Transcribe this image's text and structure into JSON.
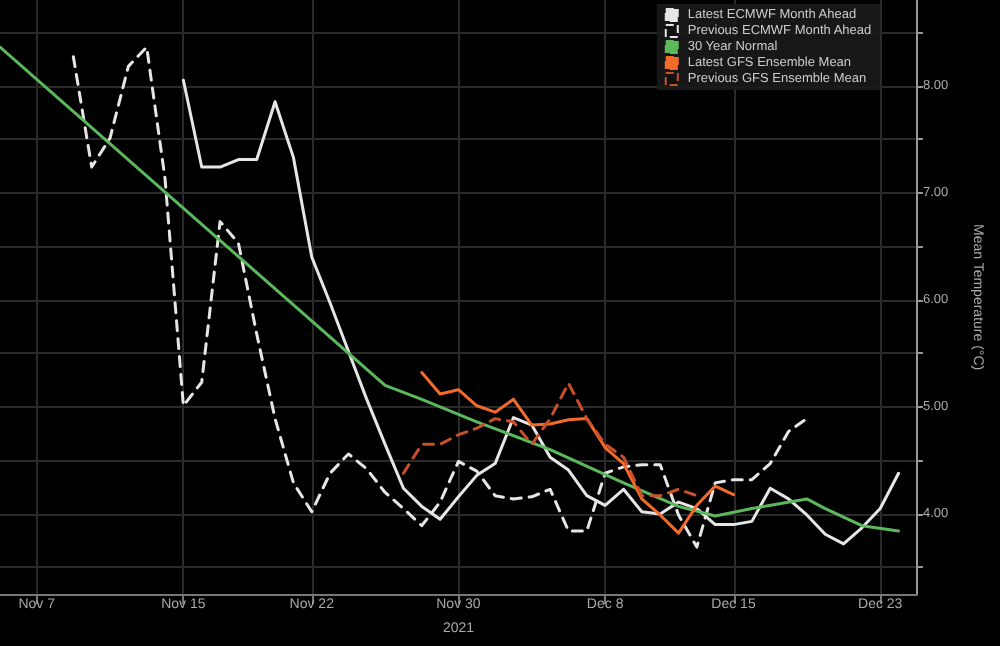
{
  "chart_data": {
    "type": "line",
    "xlabel": "2021",
    "ylabel": "Mean Temperature (°C)",
    "xlim": [
      "2021-11-05",
      "2021-12-25"
    ],
    "xticks": [
      {
        "value": "2021-11-07",
        "label": "Nov 7"
      },
      {
        "value": "2021-11-15",
        "label": "Nov 15"
      },
      {
        "value": "2021-11-22",
        "label": "Nov 22"
      },
      {
        "value": "2021-11-30",
        "label": "Nov 30"
      },
      {
        "value": "2021-12-08",
        "label": "Dec 8"
      },
      {
        "value": "2021-12-15",
        "label": "Dec 15"
      },
      {
        "value": "2021-12-23",
        "label": "Dec 23"
      }
    ],
    "ylim": [
      3.25,
      8.8
    ],
    "yticks": [
      {
        "value": 3.5,
        "label": null
      },
      {
        "value": 4,
        "label": "4.00"
      },
      {
        "value": 4.5,
        "label": null
      },
      {
        "value": 5,
        "label": "5.00"
      },
      {
        "value": 5.5,
        "label": null
      },
      {
        "value": 6,
        "label": "6.00"
      },
      {
        "value": 6.5,
        "label": null
      },
      {
        "value": 7,
        "label": "7.00"
      },
      {
        "value": 7.5,
        "label": null
      },
      {
        "value": 8,
        "label": "8.00"
      },
      {
        "value": 8.5,
        "label": null
      }
    ],
    "grid": true,
    "legend": "top right",
    "marker": "none",
    "series": [
      {
        "name": "Latest ECMWF Month Ahead",
        "color": "#e6e6e6",
        "line_style": "solid",
        "x": [
          "2021-11-15",
          "2021-11-16",
          "2021-11-17",
          "2021-11-18",
          "2021-11-19",
          "2021-11-20",
          "2021-11-21",
          "2021-11-22",
          "2021-11-23",
          "2021-11-24",
          "2021-11-25",
          "2021-11-26",
          "2021-11-27",
          "2021-11-28",
          "2021-11-29",
          "2021-11-30",
          "2021-12-01",
          "2021-12-02",
          "2021-12-03",
          "2021-12-04",
          "2021-12-05",
          "2021-12-06",
          "2021-12-07",
          "2021-12-08",
          "2021-12-09",
          "2021-12-10",
          "2021-12-11",
          "2021-12-12",
          "2021-12-13",
          "2021-12-14",
          "2021-12-15",
          "2021-12-16",
          "2021-12-17",
          "2021-12-18",
          "2021-12-19",
          "2021-12-20",
          "2021-12-21",
          "2021-12-22",
          "2021-12-23",
          "2021-12-24"
        ],
        "values": [
          8.05,
          7.24,
          7.24,
          7.31,
          7.31,
          7.85,
          7.33,
          6.4,
          5.97,
          5.52,
          5.07,
          4.65,
          4.24,
          4.07,
          3.95,
          4.16,
          4.36,
          4.47,
          4.9,
          4.83,
          4.53,
          4.41,
          4.17,
          4.08,
          4.23,
          4.02,
          4.0,
          4.11,
          4.05,
          3.9,
          3.9,
          3.93,
          4.24,
          4.14,
          3.99,
          3.81,
          3.72,
          3.87,
          4.05,
          4.38
        ]
      },
      {
        "name": "Previous ECMWF Month Ahead",
        "color": "#e6e6e6",
        "line_style": "dashed",
        "x": [
          "2021-11-09",
          "2021-11-10",
          "2021-11-11",
          "2021-11-12",
          "2021-11-13",
          "2021-11-14",
          "2021-11-15",
          "2021-11-16",
          "2021-11-17",
          "2021-11-18",
          "2021-11-19",
          "2021-11-20",
          "2021-11-21",
          "2021-11-22",
          "2021-11-23",
          "2021-11-24",
          "2021-11-25",
          "2021-11-26",
          "2021-11-27",
          "2021-11-28",
          "2021-11-29",
          "2021-11-30",
          "2021-12-01",
          "2021-12-02",
          "2021-12-03",
          "2021-12-04",
          "2021-12-05",
          "2021-12-06",
          "2021-12-07",
          "2021-12-08",
          "2021-12-09",
          "2021-12-10",
          "2021-12-11",
          "2021-12-12",
          "2021-12-13",
          "2021-12-14",
          "2021-12-15",
          "2021-12-16",
          "2021-12-17",
          "2021-12-18",
          "2021-12-19"
        ],
        "values": [
          8.27,
          7.24,
          7.51,
          8.18,
          8.36,
          7.13,
          5.01,
          5.23,
          6.73,
          6.53,
          5.68,
          4.89,
          4.29,
          4.02,
          4.38,
          4.56,
          4.42,
          4.2,
          4.05,
          3.89,
          4.11,
          4.49,
          4.4,
          4.17,
          4.14,
          4.16,
          4.23,
          3.84,
          3.84,
          4.38,
          4.44,
          4.46,
          4.46,
          3.99,
          3.69,
          4.29,
          4.32,
          4.32,
          4.47,
          4.77,
          4.89
        ]
      },
      {
        "name": "30 Year Normal",
        "color": "#5cb85c",
        "line_style": "solid",
        "x": [
          "2021-11-05",
          "2021-11-26",
          "2021-11-28",
          "2021-12-01",
          "2021-12-05",
          "2021-12-09",
          "2021-12-12",
          "2021-12-14",
          "2021-12-16",
          "2021-12-19",
          "2021-12-20",
          "2021-12-22",
          "2021-12-24"
        ],
        "values": [
          8.36,
          5.2,
          5.07,
          4.86,
          4.6,
          4.29,
          4.07,
          3.98,
          4.05,
          4.14,
          4.05,
          3.89,
          3.84
        ]
      },
      {
        "name": "Latest GFS Ensemble Mean",
        "color": "#f26b2a",
        "line_style": "solid",
        "x": [
          "2021-11-28",
          "2021-11-29",
          "2021-11-30",
          "2021-12-01",
          "2021-12-02",
          "2021-12-03",
          "2021-12-04",
          "2021-12-05",
          "2021-12-06",
          "2021-12-07",
          "2021-12-08",
          "2021-12-09",
          "2021-12-10",
          "2021-12-11",
          "2021-12-12",
          "2021-12-13",
          "2021-12-14",
          "2021-12-15"
        ],
        "values": [
          5.32,
          5.12,
          5.16,
          5.01,
          4.95,
          5.07,
          4.83,
          4.84,
          4.88,
          4.89,
          4.62,
          4.47,
          4.14,
          3.99,
          3.82,
          4.08,
          4.26,
          4.18
        ]
      },
      {
        "name": "Previous GFS Ensemble Mean",
        "color": "#c8502a",
        "line_style": "dashed",
        "x": [
          "2021-11-27",
          "2021-11-28",
          "2021-11-29",
          "2021-11-30",
          "2021-12-01",
          "2021-12-02",
          "2021-12-03",
          "2021-12-04",
          "2021-12-05",
          "2021-12-06",
          "2021-12-07",
          "2021-12-08",
          "2021-12-09",
          "2021-12-10",
          "2021-12-11",
          "2021-12-12",
          "2021-12-13"
        ],
        "values": [
          4.38,
          4.65,
          4.65,
          4.74,
          4.8,
          4.89,
          4.86,
          4.65,
          4.89,
          5.22,
          4.89,
          4.65,
          4.53,
          4.17,
          4.17,
          4.23,
          4.17
        ]
      }
    ]
  }
}
